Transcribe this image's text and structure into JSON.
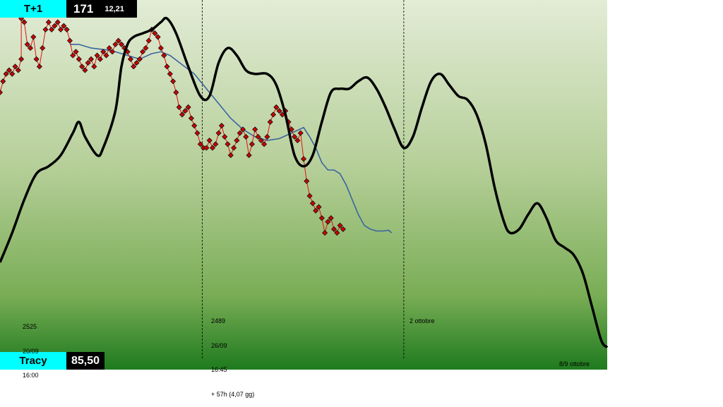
{
  "header": {
    "label": "T+1",
    "value": "171",
    "subvalue": "12,21"
  },
  "footer": {
    "label": "Tracy",
    "value": "85,50"
  },
  "annotations": [
    {
      "lines": [
        "2525",
        "20/09",
        "16:00"
      ]
    },
    {
      "lines": [
        "2489",
        "26/09",
        "16:45",
        "+ 57h (4,07 gg)"
      ]
    },
    {
      "lines": [
        "2 ottobre"
      ]
    },
    {
      "lines": [
        "8/9 ottobre"
      ]
    }
  ],
  "colors": {
    "bg_top": "#e2ecd6",
    "bg_bottom": "#1e7a1e",
    "forecast": "#000000",
    "price": "#e01010",
    "marker": "#cc0000",
    "average": "#3a64a0"
  },
  "chart_data": {
    "type": "line",
    "x_domain": [
      0,
      100
    ],
    "y_domain": [
      0,
      100
    ],
    "grid": false,
    "vertical_markers_x": [
      33.3,
      66.5
    ],
    "series": [
      {
        "role": "forecast",
        "style": "thick-line",
        "points": [
          [
            0,
            71
          ],
          [
            2,
            63
          ],
          [
            4,
            54
          ],
          [
            6,
            47
          ],
          [
            8,
            45
          ],
          [
            10,
            42
          ],
          [
            12,
            36
          ],
          [
            13,
            33
          ],
          [
            14,
            37
          ],
          [
            16,
            42
          ],
          [
            17,
            40
          ],
          [
            19,
            30
          ],
          [
            20,
            18
          ],
          [
            21,
            12
          ],
          [
            22,
            10
          ],
          [
            23.5,
            9
          ],
          [
            25,
            8
          ],
          [
            26.5,
            6
          ],
          [
            27.5,
            5
          ],
          [
            29,
            9
          ],
          [
            31,
            18
          ],
          [
            33,
            26
          ],
          [
            34.5,
            26
          ],
          [
            36,
            17
          ],
          [
            37.5,
            13
          ],
          [
            39,
            15
          ],
          [
            40.5,
            19
          ],
          [
            42,
            20
          ],
          [
            44,
            20
          ],
          [
            45.5,
            23
          ],
          [
            47,
            31
          ],
          [
            48.5,
            42
          ],
          [
            50,
            45
          ],
          [
            51.5,
            42
          ],
          [
            53,
            33
          ],
          [
            54.5,
            25
          ],
          [
            56,
            24
          ],
          [
            57.5,
            24
          ],
          [
            59,
            22
          ],
          [
            60.5,
            21
          ],
          [
            62,
            24
          ],
          [
            63.5,
            29
          ],
          [
            65,
            35
          ],
          [
            66.5,
            40
          ],
          [
            68,
            37
          ],
          [
            69.5,
            29
          ],
          [
            71,
            22
          ],
          [
            72.5,
            20
          ],
          [
            74,
            23
          ],
          [
            75.5,
            26
          ],
          [
            77,
            27
          ],
          [
            78.5,
            31
          ],
          [
            80,
            39
          ],
          [
            81.5,
            51
          ],
          [
            83,
            60
          ],
          [
            84,
            63
          ],
          [
            85.5,
            62
          ],
          [
            87,
            58
          ],
          [
            88.5,
            55
          ],
          [
            90,
            59
          ],
          [
            91.5,
            65
          ],
          [
            93,
            67
          ],
          [
            94.5,
            69
          ],
          [
            96,
            74
          ],
          [
            97.5,
            83
          ],
          [
            99,
            92
          ],
          [
            100,
            94
          ]
        ]
      },
      {
        "role": "average",
        "style": "thin-line",
        "points": [
          [
            11.5,
            12
          ],
          [
            13,
            12
          ],
          [
            15,
            13
          ],
          [
            17.5,
            13.5
          ],
          [
            19,
            14
          ],
          [
            21,
            15
          ],
          [
            23,
            16
          ],
          [
            25,
            14.5
          ],
          [
            26.5,
            14
          ],
          [
            28,
            15
          ],
          [
            30,
            17.5
          ],
          [
            32,
            20
          ],
          [
            34,
            24
          ],
          [
            36,
            28
          ],
          [
            38,
            32
          ],
          [
            40,
            35
          ],
          [
            42,
            37
          ],
          [
            44,
            38
          ],
          [
            46,
            37.5
          ],
          [
            48,
            36
          ],
          [
            50,
            34.5
          ],
          [
            51,
            37
          ],
          [
            52,
            40
          ],
          [
            53,
            44
          ],
          [
            54,
            46
          ],
          [
            55,
            46
          ],
          [
            56,
            47
          ],
          [
            57,
            50
          ],
          [
            58,
            54
          ],
          [
            59,
            58
          ],
          [
            60,
            61
          ],
          [
            61,
            62
          ],
          [
            62,
            62.5
          ],
          [
            63,
            62.5
          ],
          [
            64,
            62.3
          ],
          [
            64.5,
            63
          ]
        ]
      },
      {
        "role": "price",
        "style": "marker-line",
        "points": [
          [
            0,
            25
          ],
          [
            0.5,
            22
          ],
          [
            1,
            20
          ],
          [
            1.5,
            19
          ],
          [
            2,
            20
          ],
          [
            2.5,
            18
          ],
          [
            3,
            19
          ],
          [
            3.5,
            16
          ],
          [
            3.5,
            5
          ],
          [
            4,
            6
          ],
          [
            4.5,
            12
          ],
          [
            5,
            13
          ],
          [
            5.5,
            10
          ],
          [
            6,
            16
          ],
          [
            6.5,
            18
          ],
          [
            7,
            13
          ],
          [
            7.5,
            8
          ],
          [
            8,
            6
          ],
          [
            8.5,
            8
          ],
          [
            9,
            7
          ],
          [
            9.5,
            6
          ],
          [
            10,
            8
          ],
          [
            10.5,
            7
          ],
          [
            11,
            8
          ],
          [
            11.5,
            11
          ],
          [
            12,
            15
          ],
          [
            12.5,
            14
          ],
          [
            13,
            16
          ],
          [
            13.5,
            18
          ],
          [
            14,
            19
          ],
          [
            14.5,
            17
          ],
          [
            15,
            16
          ],
          [
            15.5,
            18
          ],
          [
            16,
            15
          ],
          [
            16.5,
            16
          ],
          [
            17,
            14
          ],
          [
            17.5,
            15
          ],
          [
            18,
            13
          ],
          [
            18.5,
            14
          ],
          [
            19,
            12
          ],
          [
            19.5,
            11
          ],
          [
            20,
            12
          ],
          [
            20.5,
            13
          ],
          [
            21,
            14
          ],
          [
            21.5,
            16
          ],
          [
            22,
            18
          ],
          [
            22.5,
            17
          ],
          [
            23,
            16
          ],
          [
            23.5,
            14
          ],
          [
            24,
            13
          ],
          [
            24.5,
            11
          ],
          [
            25,
            8
          ],
          [
            25.5,
            9
          ],
          [
            26,
            10
          ],
          [
            26.5,
            13
          ],
          [
            27,
            15
          ],
          [
            27.5,
            18
          ],
          [
            28,
            20
          ],
          [
            28.5,
            22
          ],
          [
            29,
            25
          ],
          [
            29.5,
            29
          ],
          [
            30,
            31
          ],
          [
            30.5,
            30
          ],
          [
            31,
            29
          ],
          [
            31.5,
            32
          ],
          [
            32,
            34
          ],
          [
            32.5,
            36
          ],
          [
            33,
            39
          ],
          [
            33.5,
            40
          ],
          [
            34,
            40
          ],
          [
            34.5,
            38
          ],
          [
            35,
            40
          ],
          [
            35.5,
            39
          ],
          [
            36,
            36
          ],
          [
            36.5,
            34
          ],
          [
            37,
            37
          ],
          [
            37.5,
            39
          ],
          [
            38,
            42
          ],
          [
            38.5,
            40
          ],
          [
            39,
            38
          ],
          [
            39.5,
            36
          ],
          [
            40,
            35
          ],
          [
            40.5,
            37
          ],
          [
            41,
            42
          ],
          [
            41.5,
            39
          ],
          [
            42,
            35
          ],
          [
            42.5,
            37
          ],
          [
            43,
            38
          ],
          [
            43.5,
            39
          ],
          [
            44,
            37
          ],
          [
            44.5,
            33
          ],
          [
            45,
            31
          ],
          [
            45.5,
            29
          ],
          [
            46,
            30
          ],
          [
            46.5,
            31
          ],
          [
            47,
            30
          ],
          [
            47.5,
            33
          ],
          [
            48,
            35
          ],
          [
            48.5,
            37
          ],
          [
            49,
            38
          ],
          [
            49.5,
            36
          ],
          [
            50,
            43
          ],
          [
            50.5,
            49
          ],
          [
            51,
            53
          ],
          [
            51.5,
            55
          ],
          [
            52,
            57
          ],
          [
            52.5,
            56
          ],
          [
            53,
            59
          ],
          [
            53.5,
            63
          ],
          [
            54,
            60
          ],
          [
            54.5,
            59
          ],
          [
            55,
            62
          ],
          [
            55.5,
            63
          ],
          [
            56,
            61
          ],
          [
            56.5,
            62
          ]
        ]
      }
    ]
  }
}
